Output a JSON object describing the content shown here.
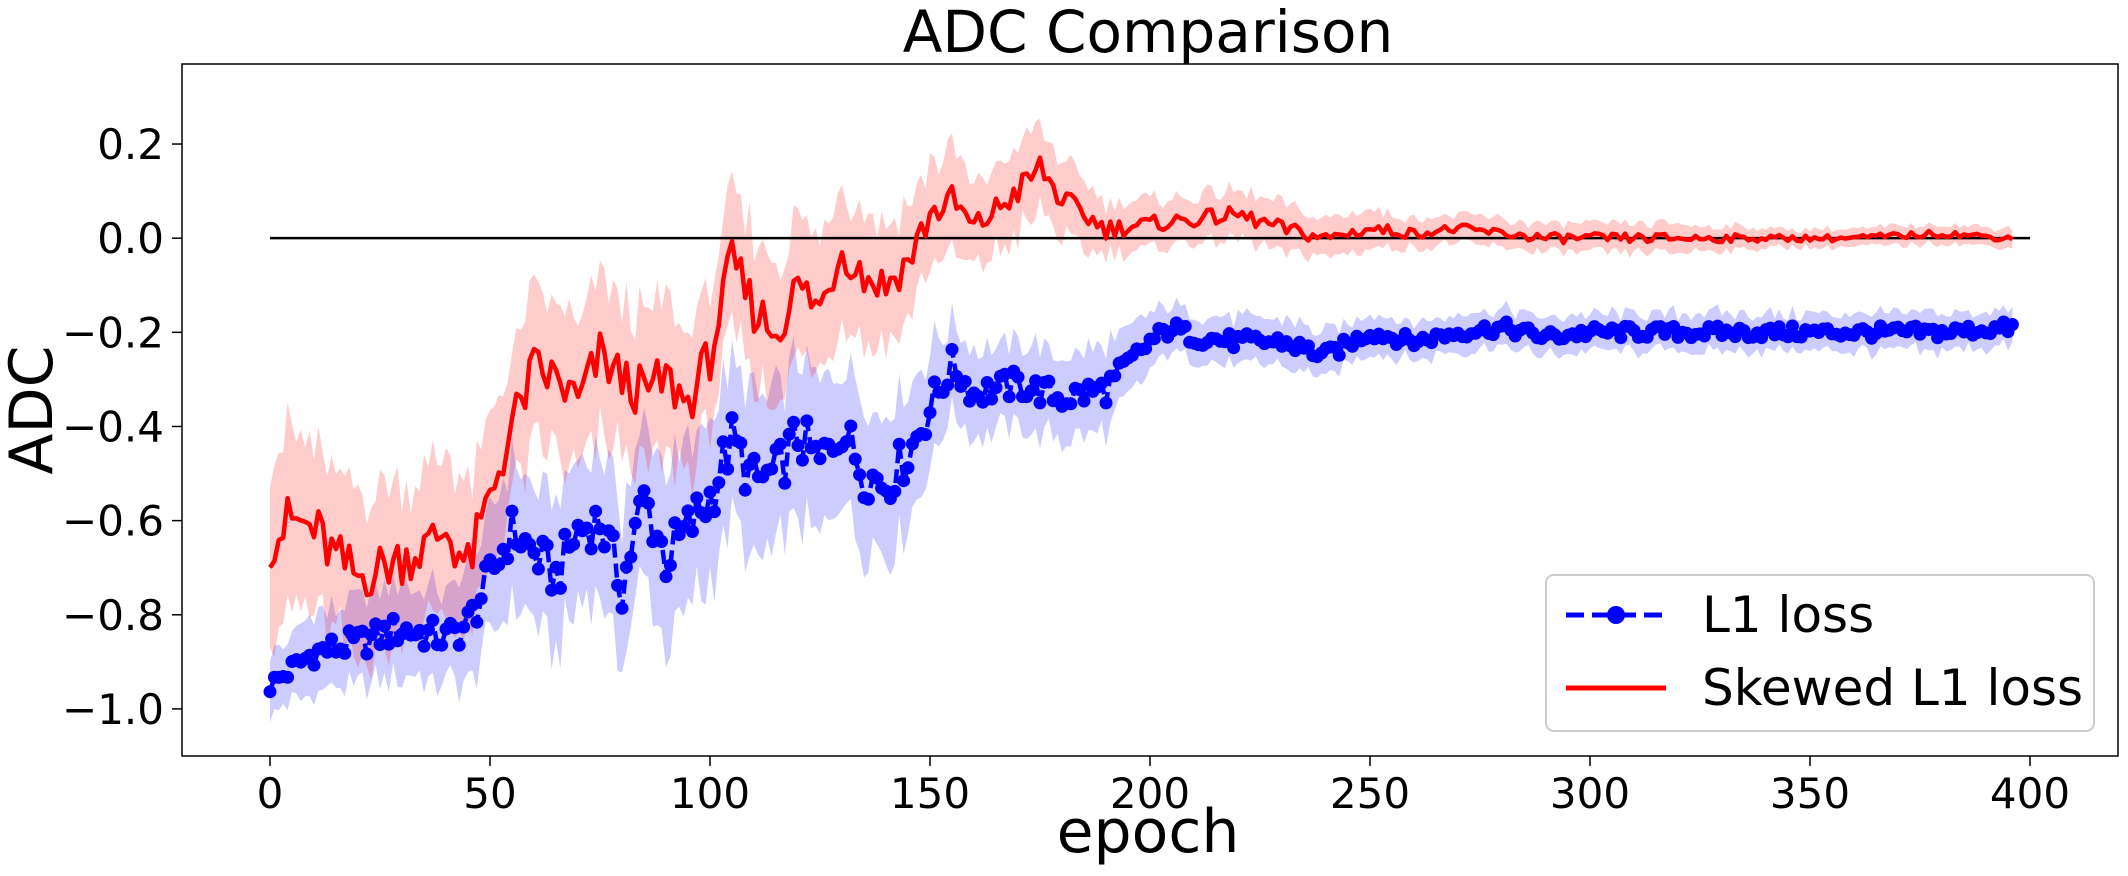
{
  "chart_data": {
    "type": "line",
    "title": "ADC Comparison",
    "xlabel": "epoch",
    "ylabel": "ADC",
    "xlim": [
      -20,
      420
    ],
    "ylim": [
      -1.1,
      0.37
    ],
    "xticks": [
      0,
      50,
      100,
      150,
      200,
      250,
      300,
      350,
      400
    ],
    "yticks": [
      -1.0,
      -0.8,
      -0.6,
      -0.4,
      -0.2,
      0.0,
      0.2
    ],
    "ytick_labels": [
      "−1.0",
      "−0.8",
      "−0.6",
      "−0.4",
      "−0.2",
      "0.0",
      "0.2"
    ],
    "grid": false,
    "legend_position": "lower-right",
    "reference_line": {
      "y": 0.0,
      "x_range": [
        0,
        400
      ],
      "color": "#000000"
    },
    "series": [
      {
        "name": "L1 loss",
        "color": "#0000ff",
        "band_color": "#0000ff",
        "style": "dashed-with-markers",
        "x": [
          0,
          10,
          20,
          30,
          40,
          45,
          50,
          55,
          60,
          65,
          70,
          75,
          80,
          85,
          90,
          95,
          100,
          105,
          110,
          115,
          120,
          125,
          130,
          135,
          140,
          145,
          150,
          155,
          160,
          170,
          180,
          190,
          200,
          205,
          210,
          220,
          230,
          240,
          250,
          260,
          270,
          280,
          290,
          300,
          320,
          340,
          360,
          380,
          396
        ],
        "values": [
          -0.95,
          -0.88,
          -0.86,
          -0.83,
          -0.85,
          -0.82,
          -0.72,
          -0.62,
          -0.67,
          -0.72,
          -0.62,
          -0.6,
          -0.74,
          -0.55,
          -0.68,
          -0.62,
          -0.55,
          -0.43,
          -0.52,
          -0.5,
          -0.42,
          -0.48,
          -0.4,
          -0.5,
          -0.52,
          -0.46,
          -0.36,
          -0.27,
          -0.33,
          -0.31,
          -0.34,
          -0.32,
          -0.22,
          -0.19,
          -0.21,
          -0.22,
          -0.22,
          -0.25,
          -0.2,
          -0.22,
          -0.2,
          -0.19,
          -0.21,
          -0.2,
          -0.2,
          -0.2,
          -0.2,
          -0.2,
          -0.19
        ],
        "band_halfwidth": [
          0.06,
          0.08,
          0.09,
          0.1,
          0.1,
          0.12,
          0.13,
          0.14,
          0.15,
          0.15,
          0.15,
          0.15,
          0.16,
          0.16,
          0.17,
          0.17,
          0.17,
          0.17,
          0.17,
          0.16,
          0.16,
          0.16,
          0.15,
          0.15,
          0.15,
          0.14,
          0.13,
          0.1,
          0.09,
          0.09,
          0.09,
          0.09,
          0.06,
          0.05,
          0.05,
          0.05,
          0.05,
          0.05,
          0.04,
          0.04,
          0.04,
          0.04,
          0.04,
          0.04,
          0.04,
          0.04,
          0.04,
          0.04,
          0.04
        ]
      },
      {
        "name": "Skewed L1 loss",
        "color": "#ff0000",
        "band_color": "#ff0000",
        "style": "solid",
        "x": [
          0,
          5,
          10,
          15,
          20,
          25,
          30,
          35,
          40,
          45,
          50,
          55,
          60,
          65,
          70,
          75,
          80,
          85,
          90,
          95,
          100,
          105,
          110,
          115,
          120,
          125,
          130,
          135,
          140,
          145,
          150,
          155,
          160,
          165,
          170,
          175,
          180,
          185,
          190,
          200,
          210,
          220,
          230,
          240,
          250,
          260,
          270,
          280,
          290,
          300,
          320,
          340,
          360,
          380,
          396
        ],
        "values": [
          -0.64,
          -0.6,
          -0.62,
          -0.68,
          -0.72,
          -0.7,
          -0.68,
          -0.66,
          -0.62,
          -0.7,
          -0.55,
          -0.4,
          -0.28,
          -0.3,
          -0.35,
          -0.25,
          -0.3,
          -0.33,
          -0.3,
          -0.35,
          -0.25,
          -0.05,
          -0.15,
          -0.2,
          -0.1,
          -0.15,
          -0.02,
          -0.08,
          -0.1,
          -0.05,
          0.05,
          0.08,
          0.02,
          0.06,
          0.1,
          0.15,
          0.08,
          0.05,
          0.02,
          0.03,
          0.04,
          0.05,
          0.02,
          0.0,
          0.02,
          0.01,
          0.02,
          0.01,
          0.0,
          0.0,
          0.0,
          0.0,
          0.0,
          0.01,
          0.0
        ],
        "band_halfwidth": [
          0.18,
          0.18,
          0.18,
          0.17,
          0.17,
          0.16,
          0.16,
          0.16,
          0.16,
          0.16,
          0.16,
          0.16,
          0.16,
          0.16,
          0.16,
          0.16,
          0.16,
          0.16,
          0.16,
          0.15,
          0.15,
          0.15,
          0.15,
          0.15,
          0.14,
          0.14,
          0.14,
          0.14,
          0.13,
          0.12,
          0.11,
          0.1,
          0.09,
          0.09,
          0.09,
          0.09,
          0.08,
          0.07,
          0.06,
          0.05,
          0.05,
          0.05,
          0.05,
          0.04,
          0.04,
          0.03,
          0.03,
          0.03,
          0.03,
          0.03,
          0.03,
          0.02,
          0.02,
          0.02,
          0.02
        ]
      }
    ]
  }
}
